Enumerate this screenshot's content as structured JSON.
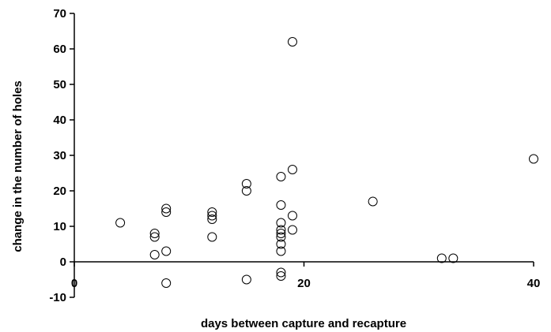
{
  "chart_data": {
    "type": "scatter",
    "title": "",
    "xlabel": "days between capture and recapture",
    "ylabel": "change in the number of holes",
    "xlim": [
      0,
      40
    ],
    "ylim": [
      -10,
      70
    ],
    "xticks": [
      0,
      20,
      40
    ],
    "yticks": [
      -10,
      0,
      10,
      20,
      30,
      40,
      50,
      60,
      70
    ],
    "grid": false,
    "legend": "none",
    "marker": "open-circle",
    "colors": {
      "marker_stroke": "#000000",
      "axis": "#000000",
      "background": "#ffffff"
    },
    "points": [
      {
        "x": 4,
        "y": 11
      },
      {
        "x": 7,
        "y": 8
      },
      {
        "x": 7,
        "y": 7
      },
      {
        "x": 7,
        "y": 2
      },
      {
        "x": 8,
        "y": 15
      },
      {
        "x": 8,
        "y": 14
      },
      {
        "x": 8,
        "y": 3
      },
      {
        "x": 8,
        "y": -6
      },
      {
        "x": 12,
        "y": 14
      },
      {
        "x": 12,
        "y": 13
      },
      {
        "x": 12,
        "y": 12
      },
      {
        "x": 12,
        "y": 7
      },
      {
        "x": 15,
        "y": 22
      },
      {
        "x": 15,
        "y": 20
      },
      {
        "x": 15,
        "y": -5
      },
      {
        "x": 18,
        "y": 24
      },
      {
        "x": 18,
        "y": 16
      },
      {
        "x": 18,
        "y": 11
      },
      {
        "x": 18,
        "y": 9
      },
      {
        "x": 18,
        "y": 8
      },
      {
        "x": 18,
        "y": 7
      },
      {
        "x": 18,
        "y": 5
      },
      {
        "x": 18,
        "y": 3
      },
      {
        "x": 18,
        "y": -3
      },
      {
        "x": 18,
        "y": -4
      },
      {
        "x": 19,
        "y": 62
      },
      {
        "x": 19,
        "y": 26
      },
      {
        "x": 19,
        "y": 13
      },
      {
        "x": 19,
        "y": 9
      },
      {
        "x": 26,
        "y": 17
      },
      {
        "x": 32,
        "y": 1
      },
      {
        "x": 33,
        "y": 1
      },
      {
        "x": 40,
        "y": 29
      }
    ]
  }
}
